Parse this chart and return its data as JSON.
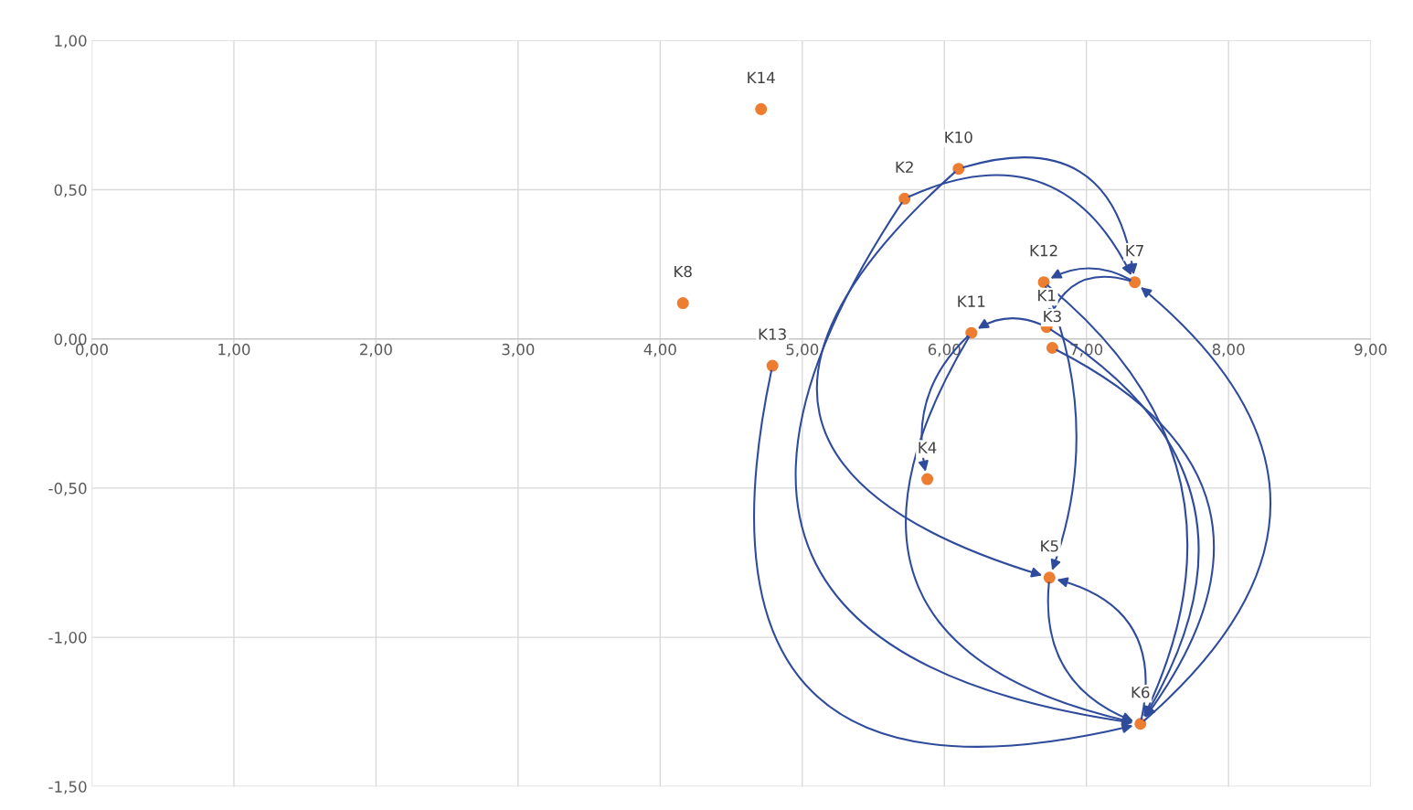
{
  "chart_data": {
    "type": "scatter",
    "series": [
      {
        "color": "#ed7d31",
        "x": [
          4.71,
          6.1,
          5.72,
          4.16,
          4.79,
          6.19,
          6.7,
          7.34,
          6.72,
          6.76,
          5.88,
          6.74,
          7.38
        ],
        "values": [
          0.77,
          0.57,
          0.47,
          0.12,
          -0.09,
          0.02,
          0.19,
          0.19,
          0.04,
          -0.03,
          -0.47,
          -0.8,
          -1.29
        ],
        "value_labels": [
          "K14",
          "K10",
          "K2",
          "K8",
          "K13",
          "K11",
          "K12",
          "K7",
          "K1",
          "K3",
          "K4",
          "K5",
          "K6"
        ]
      }
    ],
    "xlim": [
      0,
      9
    ],
    "ylim": [
      -1.5,
      1.0
    ],
    "xticks": [
      {
        "value": 0,
        "label": "0,00"
      },
      {
        "value": 1,
        "label": "1,00"
      },
      {
        "value": 2,
        "label": "2,00"
      },
      {
        "value": 3,
        "label": "3,00"
      },
      {
        "value": 4,
        "label": "4,00"
      },
      {
        "value": 5,
        "label": "5,00"
      },
      {
        "value": 6,
        "label": "6,00"
      },
      {
        "value": 7,
        "label": "7,00"
      },
      {
        "value": 8,
        "label": "8,00"
      },
      {
        "value": 9,
        "label": "9,00"
      }
    ],
    "yticks": [
      {
        "value": -1.5,
        "label": "-1,50"
      },
      {
        "value": -1.0,
        "label": "-1,00"
      },
      {
        "value": -0.5,
        "label": "-0,50"
      },
      {
        "value": 0,
        "label": "0,00"
      },
      {
        "value": 0.5,
        "label": "0,50"
      },
      {
        "value": 1.0,
        "label": "1,00"
      }
    ],
    "grid": true,
    "marker": "circle"
  }
}
